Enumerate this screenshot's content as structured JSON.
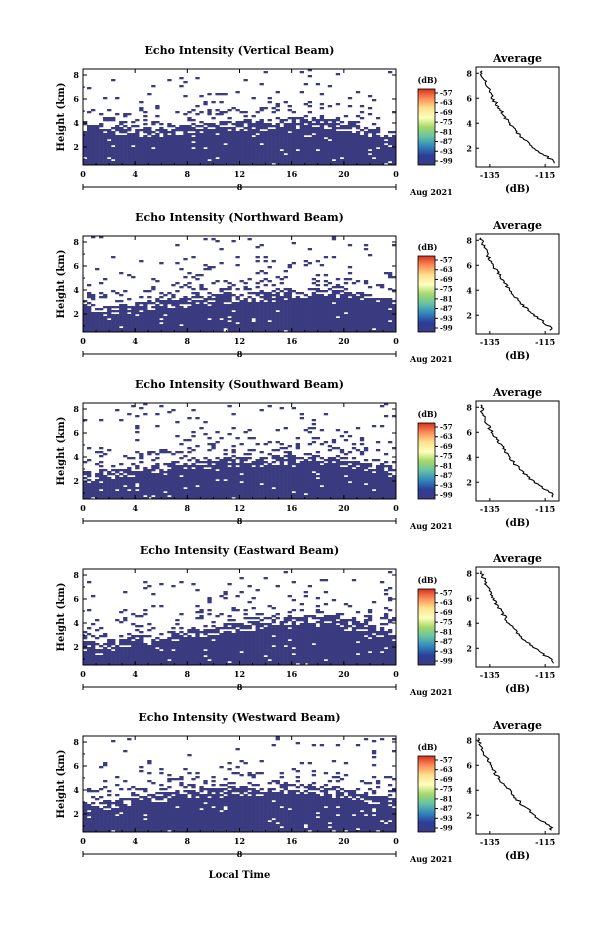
{
  "colorbar": {
    "unit": "(dB)",
    "labels": [
      "-57",
      "-63",
      "-69",
      "-75",
      "-81",
      "-87",
      "-93",
      "-99"
    ],
    "stops": [
      "#d7301f",
      "#fc8d59",
      "#fee08b",
      "#ffffbf",
      "#a6d96a",
      "#66c2a5",
      "#3288bd",
      "#2c3e99",
      "#3b3b80"
    ]
  },
  "common": {
    "ylabel": "Height (km)",
    "yticks": [
      "8",
      "6",
      "4",
      "2"
    ],
    "xticks": [
      "0",
      "4",
      "8",
      "12",
      "16",
      "20",
      "0"
    ],
    "date_day": "8",
    "date_month": "Aug 2021",
    "xlabel": "Local Time",
    "avg_title": "Average",
    "avg_xticks": [
      "-135",
      "-115"
    ],
    "avg_xlabel": "(dB)",
    "avg_yticks": [
      "8",
      "6",
      "4",
      "2"
    ],
    "fill_color": "#3b3b80"
  },
  "chart_data": [
    {
      "type": "heatmap",
      "title": "Echo Intensity (Vertical Beam)",
      "x_range_hours": [
        0,
        24
      ],
      "y_range_km": [
        0.5,
        8.5
      ],
      "dense_echo_top_km": [
        3.9,
        3.8,
        3.7,
        3.6,
        3.5,
        3.4,
        3.5,
        3.6,
        3.7,
        3.8,
        3.9,
        4.0,
        4.0,
        4.0,
        4.1,
        4.2,
        4.3,
        4.4,
        4.3,
        4.1,
        3.9,
        3.6,
        3.4,
        3.2,
        3.0
      ],
      "average_profile": {
        "height_km": [
          8,
          7,
          6,
          5,
          4,
          3,
          2,
          1
        ],
        "intensity_db": [
          -138,
          -136,
          -134,
          -131,
          -128,
          -124,
          -119,
          -112
        ]
      }
    },
    {
      "type": "heatmap",
      "title": "Echo Intensity (Northward Beam)",
      "x_range_hours": [
        0,
        24
      ],
      "y_range_km": [
        0.5,
        8.5
      ],
      "dense_echo_top_km": [
        2.4,
        2.4,
        2.5,
        2.6,
        2.7,
        2.9,
        3.0,
        3.1,
        3.2,
        3.3,
        3.4,
        3.5,
        3.5,
        3.6,
        3.6,
        3.7,
        3.8,
        3.9,
        4.0,
        3.9,
        3.8,
        3.6,
        3.4,
        3.2,
        3.0
      ],
      "average_profile": {
        "height_km": [
          8,
          7,
          6,
          5,
          4,
          3,
          2,
          1
        ],
        "intensity_db": [
          -138,
          -136,
          -134,
          -131,
          -128,
          -124,
          -119,
          -113
        ]
      }
    },
    {
      "type": "heatmap",
      "title": "Echo Intensity (Southward Beam)",
      "x_range_hours": [
        0,
        24
      ],
      "y_range_km": [
        0.5,
        8.5
      ],
      "dense_echo_top_km": [
        2.6,
        2.7,
        2.8,
        2.9,
        3.0,
        3.1,
        3.3,
        3.4,
        3.5,
        3.6,
        3.7,
        3.7,
        3.8,
        3.8,
        3.9,
        4.0,
        4.0,
        4.1,
        4.0,
        3.9,
        3.7,
        3.5,
        3.3,
        3.1,
        2.9
      ],
      "average_profile": {
        "height_km": [
          8,
          7,
          6,
          5,
          4,
          3,
          2,
          1
        ],
        "intensity_db": [
          -138,
          -137,
          -134,
          -131,
          -128,
          -124,
          -119,
          -112
        ]
      }
    },
    {
      "type": "heatmap",
      "title": "Echo Intensity (Eastward Beam)",
      "x_range_hours": [
        0,
        24
      ],
      "y_range_km": [
        0.5,
        8.5
      ],
      "dense_echo_top_km": [
        2.3,
        2.3,
        2.4,
        2.5,
        2.7,
        2.8,
        3.0,
        3.1,
        3.3,
        3.4,
        3.6,
        3.7,
        3.9,
        4.0,
        4.1,
        4.2,
        4.3,
        4.4,
        4.5,
        4.5,
        4.3,
        4.0,
        3.7,
        3.4,
        3.1
      ],
      "average_profile": {
        "height_km": [
          8,
          7,
          6,
          5,
          4,
          3,
          2,
          1
        ],
        "intensity_db": [
          -138,
          -136,
          -134,
          -131,
          -128,
          -124,
          -119,
          -112
        ]
      }
    },
    {
      "type": "heatmap",
      "title": "Echo Intensity (Westward Beam)",
      "x_range_hours": [
        0,
        24
      ],
      "y_range_km": [
        0.5,
        8.5
      ],
      "dense_echo_top_km": [
        2.8,
        2.9,
        3.0,
        3.1,
        3.3,
        3.4,
        3.6,
        3.7,
        3.8,
        3.9,
        4.0,
        4.0,
        4.1,
        4.1,
        4.2,
        4.2,
        4.3,
        4.3,
        4.2,
        4.1,
        3.9,
        3.7,
        3.5,
        3.3,
        3.1
      ],
      "average_profile": {
        "height_km": [
          8,
          7,
          6,
          5,
          4,
          3,
          2,
          1
        ],
        "intensity_db": [
          -139,
          -137,
          -135,
          -132,
          -128,
          -124,
          -119,
          -113
        ]
      }
    }
  ]
}
